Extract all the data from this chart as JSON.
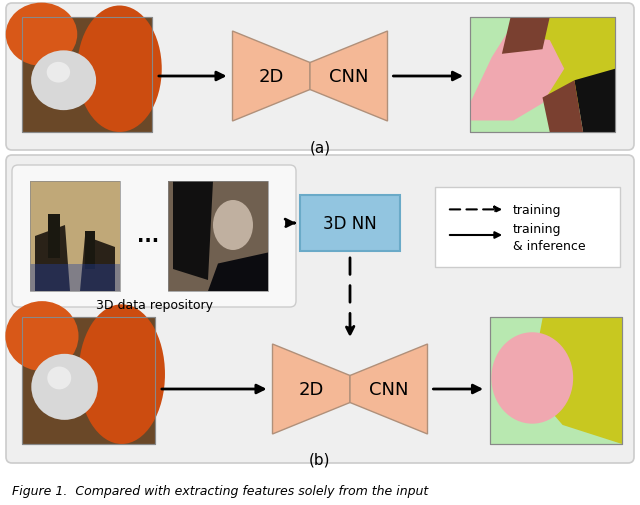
{
  "fig_width": 6.4,
  "fig_height": 5.06,
  "dpi": 100,
  "bg_color": "#ffffff",
  "panel_bg": "#ebebeb",
  "panel_edge": "#cccccc",
  "hourglass_color": "#f4b896",
  "hourglass_edge": "#b8956e",
  "box_3dnn_color": "#92c5e0",
  "box_3dnn_edge": "#6aaac8",
  "repo_box_color": "#f5f5f5",
  "repo_box_edge": "#cccccc",
  "legend_box_color": "#ffffff",
  "legend_box_edge": "#cccccc",
  "arrow_color": "#111111",
  "photo_bg": "#7a5c3a",
  "photo_orange": "#d85a18",
  "photo_white": "#e0e0e0",
  "seg_green": "#b8e8b0",
  "seg_pink": "#f4b0b8",
  "seg_yellow": "#d8d840",
  "seg_brown": "#7a4a30",
  "seg_black": "#1a1a1a",
  "seg_blue_teal": "#a0d0c0",
  "label_a": "(a)",
  "label_b": "(b)",
  "text_2d": "2D",
  "text_cnn": "CNN",
  "text_3dnn": "3D NN",
  "text_repo": "3D data repository",
  "legend_training": "training",
  "legend_train_inf1": "training",
  "legend_train_inf2": "& inference",
  "caption": "Figure 1.  Compared with extracting features solely from the input",
  "font_size_hourglass": 13,
  "font_size_3dnn": 12,
  "font_size_label": 11,
  "font_size_legend": 9,
  "font_size_repo": 9,
  "font_size_caption": 9
}
